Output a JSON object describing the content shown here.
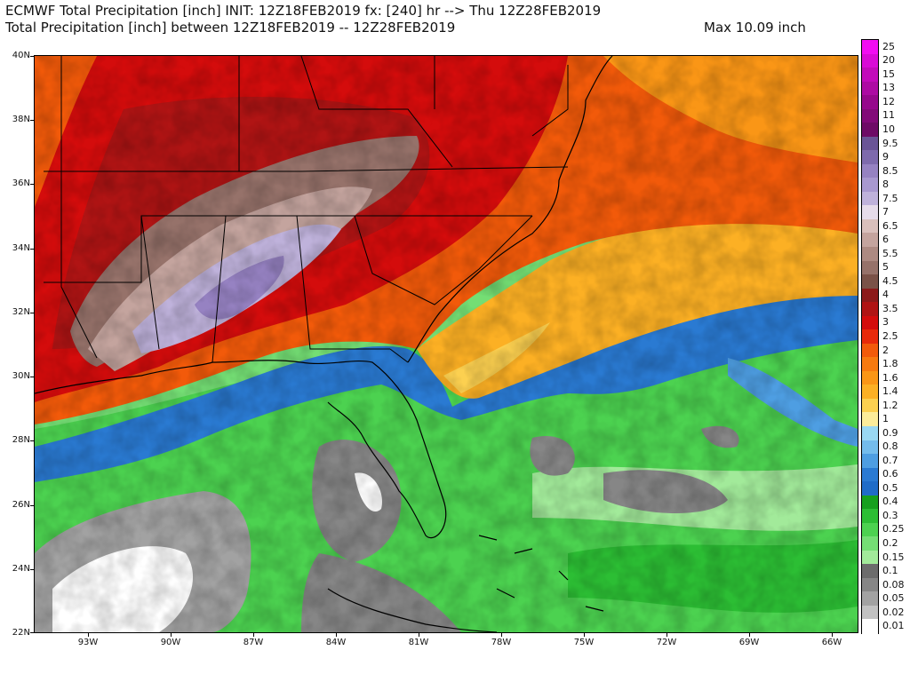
{
  "header": {
    "line1": "ECMWF Total Precipitation [inch] INIT: 12Z18FEB2019 fx: [240] hr --> Thu 12Z28FEB2019",
    "line2": "Total Precipitation [inch] between 12Z18FEB2019 -- 12Z28FEB2019",
    "max_label": "Max 10.09 inch"
  },
  "map": {
    "lat_labels": [
      "40N",
      "38N",
      "36N",
      "34N",
      "32N",
      "30N",
      "28N",
      "26N",
      "24N",
      "22N"
    ],
    "lon_labels": [
      "93W",
      "90W",
      "87W",
      "84W",
      "81W",
      "78W",
      "75W",
      "72W",
      "69W",
      "66W"
    ],
    "lat_range": [
      22,
      40
    ],
    "lon_range": [
      -95,
      -65
    ]
  },
  "legend": {
    "entries": [
      {
        "label": "25",
        "color": "#f20cf2"
      },
      {
        "label": "20",
        "color": "#d90ad6"
      },
      {
        "label": "15",
        "color": "#c20aba"
      },
      {
        "label": "13",
        "color": "#ad0aa3"
      },
      {
        "label": "12",
        "color": "#96088c"
      },
      {
        "label": "11",
        "color": "#820a78"
      },
      {
        "label": "10",
        "color": "#6e0a66"
      },
      {
        "label": "9.5",
        "color": "#6a5496"
      },
      {
        "label": "9",
        "color": "#7e6aad"
      },
      {
        "label": "8.5",
        "color": "#9682c2"
      },
      {
        "label": "8",
        "color": "#a898cf"
      },
      {
        "label": "7.5",
        "color": "#bfb2db"
      },
      {
        "label": "7",
        "color": "#e6dcea"
      },
      {
        "label": "6.5",
        "color": "#d9c0bc"
      },
      {
        "label": "6",
        "color": "#c4a49e"
      },
      {
        "label": "5.5",
        "color": "#ad8a82"
      },
      {
        "label": "5",
        "color": "#96726a"
      },
      {
        "label": "4.5",
        "color": "#7a5248"
      },
      {
        "label": "4",
        "color": "#8c1a1a"
      },
      {
        "label": "3.5",
        "color": "#b01414"
      },
      {
        "label": "3",
        "color": "#d40c0c"
      },
      {
        "label": "2.5",
        "color": "#e82a0a"
      },
      {
        "label": "2",
        "color": "#f25a0a"
      },
      {
        "label": "1.8",
        "color": "#f77a0f"
      },
      {
        "label": "1.6",
        "color": "#fa9616"
      },
      {
        "label": "1.4",
        "color": "#fcb024"
      },
      {
        "label": "1.2",
        "color": "#fcd050"
      },
      {
        "label": "1",
        "color": "#fcec9a"
      },
      {
        "label": "0.9",
        "color": "#9ad8f2"
      },
      {
        "label": "0.8",
        "color": "#74bcec"
      },
      {
        "label": "0.7",
        "color": "#4e9ee2"
      },
      {
        "label": "0.6",
        "color": "#2a7ad2"
      },
      {
        "label": "0.5",
        "color": "#1f6cc8"
      },
      {
        "label": "0.4",
        "color": "#16a01e"
      },
      {
        "label": "0.3",
        "color": "#2cbe34"
      },
      {
        "label": "0.25",
        "color": "#4cd250"
      },
      {
        "label": "0.2",
        "color": "#74de74"
      },
      {
        "label": "0.15",
        "color": "#a2ea9a"
      },
      {
        "label": "0.1",
        "color": "#6c6c6c"
      },
      {
        "label": "0.08",
        "color": "#868686"
      },
      {
        "label": "0.05",
        "color": "#a2a2a2"
      },
      {
        "label": "0.02",
        "color": "#c2c2c2"
      },
      {
        "label": "0.01",
        "color": "#ffffff"
      }
    ]
  }
}
